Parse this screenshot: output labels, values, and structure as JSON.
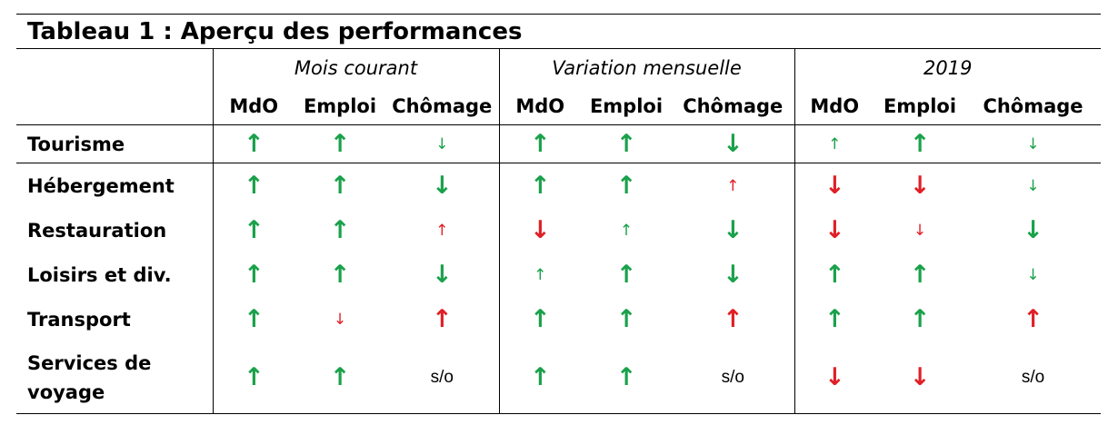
{
  "title": "Tableau 1 : Aperçu des performances",
  "groups": [
    "Mois courant",
    "Variation mensuelle",
    "2019"
  ],
  "subheaders": [
    "MdO",
    "Emploi",
    "Chômage"
  ],
  "colors": {
    "green": "#1aa14a",
    "red": "#e01f26"
  },
  "rows": [
    {
      "label": "Tourisme",
      "cells": [
        {
          "t": "↑",
          "c": "green",
          "s": "big"
        },
        {
          "t": "↑",
          "c": "green",
          "s": "big"
        },
        {
          "t": "↓",
          "c": "green",
          "s": "small"
        },
        {
          "t": "↑",
          "c": "green",
          "s": "big"
        },
        {
          "t": "↑",
          "c": "green",
          "s": "big"
        },
        {
          "t": "↓",
          "c": "green",
          "s": "big"
        },
        {
          "t": "↑",
          "c": "green",
          "s": "small"
        },
        {
          "t": "↑",
          "c": "green",
          "s": "big"
        },
        {
          "t": "↓",
          "c": "green",
          "s": "small"
        }
      ]
    },
    {
      "label": "Hébergement",
      "cells": [
        {
          "t": "↑",
          "c": "green",
          "s": "big"
        },
        {
          "t": "↑",
          "c": "green",
          "s": "big"
        },
        {
          "t": "↓",
          "c": "green",
          "s": "big"
        },
        {
          "t": "↑",
          "c": "green",
          "s": "big"
        },
        {
          "t": "↑",
          "c": "green",
          "s": "big"
        },
        {
          "t": "↑",
          "c": "red",
          "s": "small"
        },
        {
          "t": "↓",
          "c": "red",
          "s": "big"
        },
        {
          "t": "↓",
          "c": "red",
          "s": "big"
        },
        {
          "t": "↓",
          "c": "green",
          "s": "small"
        }
      ]
    },
    {
      "label": "Restauration",
      "cells": [
        {
          "t": "↑",
          "c": "green",
          "s": "big"
        },
        {
          "t": "↑",
          "c": "green",
          "s": "big"
        },
        {
          "t": "↑",
          "c": "red",
          "s": "small"
        },
        {
          "t": "↓",
          "c": "red",
          "s": "big"
        },
        {
          "t": "↑",
          "c": "green",
          "s": "small"
        },
        {
          "t": "↓",
          "c": "green",
          "s": "big"
        },
        {
          "t": "↓",
          "c": "red",
          "s": "big"
        },
        {
          "t": "↓",
          "c": "red",
          "s": "small"
        },
        {
          "t": "↓",
          "c": "green",
          "s": "big"
        }
      ]
    },
    {
      "label": "Loisirs et div.",
      "cells": [
        {
          "t": "↑",
          "c": "green",
          "s": "big"
        },
        {
          "t": "↑",
          "c": "green",
          "s": "big"
        },
        {
          "t": "↓",
          "c": "green",
          "s": "big"
        },
        {
          "t": "↑",
          "c": "green",
          "s": "small"
        },
        {
          "t": "↑",
          "c": "green",
          "s": "big"
        },
        {
          "t": "↓",
          "c": "green",
          "s": "big"
        },
        {
          "t": "↑",
          "c": "green",
          "s": "big"
        },
        {
          "t": "↑",
          "c": "green",
          "s": "big"
        },
        {
          "t": "↓",
          "c": "green",
          "s": "small"
        }
      ]
    },
    {
      "label": "Transport",
      "cells": [
        {
          "t": "↑",
          "c": "green",
          "s": "big"
        },
        {
          "t": "↓",
          "c": "red",
          "s": "small"
        },
        {
          "t": "↑",
          "c": "red",
          "s": "big"
        },
        {
          "t": "↑",
          "c": "green",
          "s": "big"
        },
        {
          "t": "↑",
          "c": "green",
          "s": "big"
        },
        {
          "t": "↑",
          "c": "red",
          "s": "big"
        },
        {
          "t": "↑",
          "c": "green",
          "s": "big"
        },
        {
          "t": "↑",
          "c": "green",
          "s": "big"
        },
        {
          "t": "↑",
          "c": "red",
          "s": "big"
        }
      ]
    },
    {
      "label": "Services de voyage",
      "cells": [
        {
          "t": "↑",
          "c": "green",
          "s": "big"
        },
        {
          "t": "↑",
          "c": "green",
          "s": "big"
        },
        {
          "t": "s/o",
          "c": "black",
          "s": "so"
        },
        {
          "t": "↑",
          "c": "green",
          "s": "big"
        },
        {
          "t": "↑",
          "c": "green",
          "s": "big"
        },
        {
          "t": "s/o",
          "c": "black",
          "s": "so"
        },
        {
          "t": "↓",
          "c": "red",
          "s": "big"
        },
        {
          "t": "↓",
          "c": "red",
          "s": "big"
        },
        {
          "t": "s/o",
          "c": "black",
          "s": "so"
        }
      ]
    }
  ]
}
